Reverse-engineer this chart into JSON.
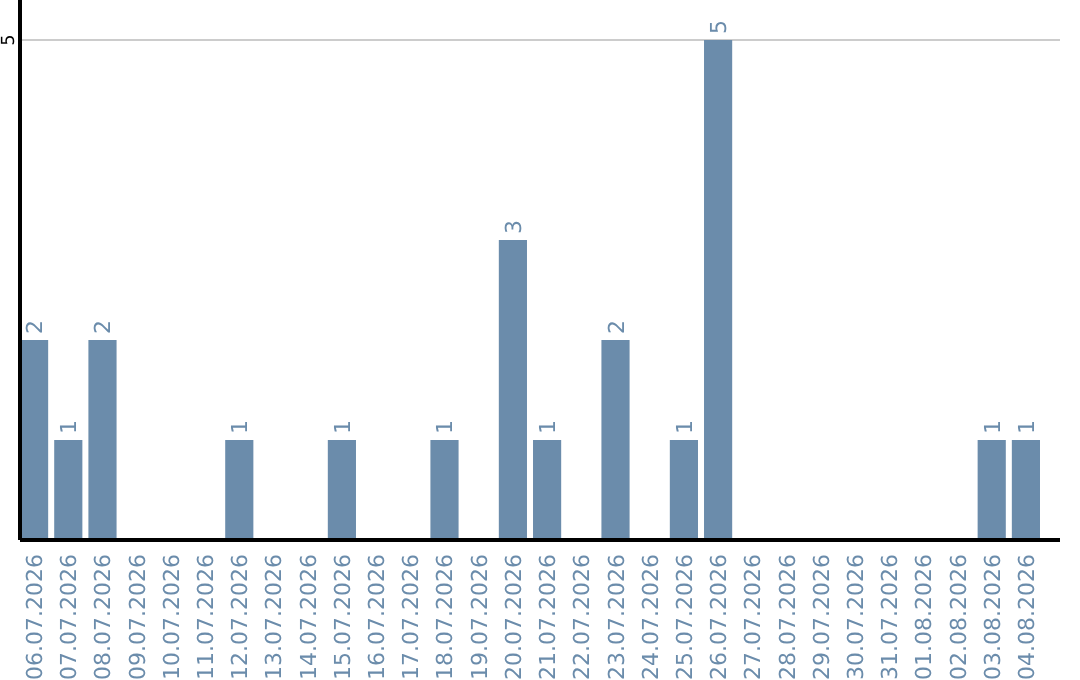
{
  "chart_data": {
    "type": "bar",
    "categories": [
      "06.07.2026",
      "07.07.2026",
      "08.07.2026",
      "09.07.2026",
      "10.07.2026",
      "11.07.2026",
      "12.07.2026",
      "13.07.2026",
      "14.07.2026",
      "15.07.2026",
      "16.07.2026",
      "17.07.2026",
      "18.07.2026",
      "19.07.2026",
      "20.07.2026",
      "21.07.2026",
      "22.07.2026",
      "23.07.2026",
      "24.07.2026",
      "25.07.2026",
      "26.07.2026",
      "27.07.2026",
      "28.07.2026",
      "29.07.2026",
      "30.07.2026",
      "31.07.2026",
      "01.08.2026",
      "02.08.2026",
      "03.08.2026",
      "04.08.2026"
    ],
    "values": [
      2,
      1,
      2,
      0,
      0,
      0,
      1,
      0,
      0,
      1,
      0,
      0,
      1,
      0,
      3,
      1,
      0,
      2,
      0,
      1,
      5,
      0,
      0,
      0,
      0,
      0,
      0,
      0,
      1,
      1
    ],
    "value_labels": [
      "2",
      "1",
      "2",
      null,
      null,
      null,
      "1",
      null,
      null,
      "1",
      null,
      null,
      "1",
      null,
      "3",
      "1",
      null,
      "2",
      null,
      "1",
      "5",
      null,
      null,
      null,
      null,
      null,
      null,
      null,
      "1",
      "1"
    ],
    "color": "#6b8cab",
    "ylim": [
      0,
      5.4
    ],
    "yticks": [
      5
    ],
    "grid": "y"
  }
}
